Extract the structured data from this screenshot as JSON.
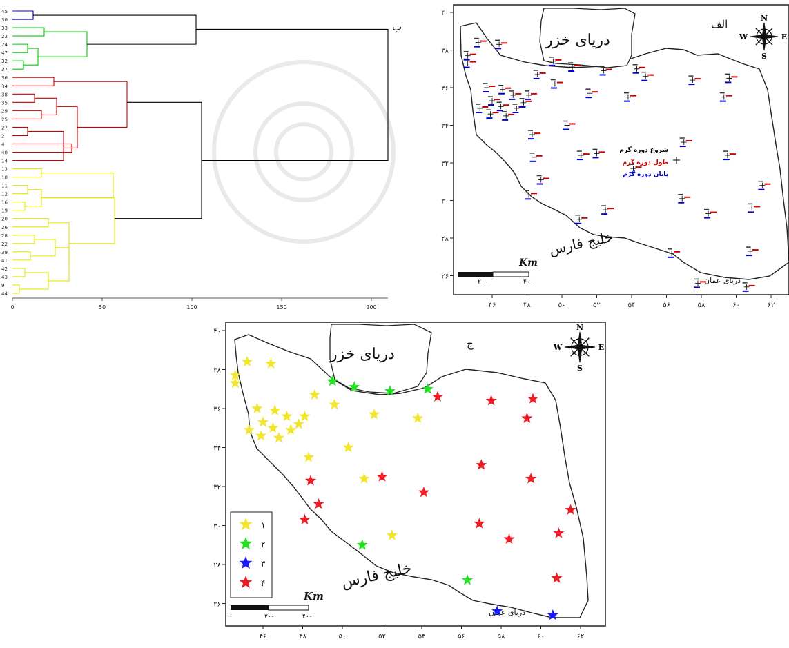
{
  "panels": {
    "dendrogram": {
      "letter": "ب",
      "leaf_labels": [
        "45",
        "30",
        "33",
        "23",
        "24",
        "47",
        "32",
        "37",
        "36",
        "34",
        "38",
        "35",
        "29",
        "25",
        "27",
        "2",
        "4",
        "40",
        "14",
        "13",
        "10",
        "11",
        "12",
        "16",
        "19",
        "20",
        "26",
        "28",
        "22",
        "39",
        "41",
        "42",
        "43",
        "9",
        "44"
      ],
      "x_ticks": [
        "0",
        "50",
        "100",
        "150",
        "200"
      ],
      "cluster_colors": {
        "c1": "#0000cc",
        "c2": "#00cc00",
        "c3": "#cc0000",
        "c4": "#e6e600",
        "root": "#000000"
      }
    },
    "map_top": {
      "letter": "الف",
      "sea_north": "دریای خزر",
      "sea_south": "خلیج فارس",
      "sea_oman": "دریای عمان",
      "scale_unit": "Km",
      "scale_labels": [
        "۲۰۰",
        "۴۰۰"
      ],
      "legend_lines": [
        {
          "text": "شروع دوره گرم",
          "color": "#000000"
        },
        {
          "text": "طول دوره گرم",
          "color": "#cc0000"
        },
        {
          "text": "پایان دوره گرم",
          "color": "#0000cc"
        }
      ],
      "x_ticks": [
        "۴۶",
        "۴۸",
        "۵۰",
        "۵۲",
        "۵۴",
        "۵۶",
        "۵۸",
        "۶۰",
        "۶۲"
      ],
      "y_ticks": [
        "۴۰",
        "۳۸",
        "۳۶",
        "۳۴",
        "۳۲",
        "۳۰",
        "۲۸",
        "۲۶"
      ],
      "compass": {
        "n": "N",
        "s": "S",
        "e": "E",
        "w": "W"
      }
    },
    "map_bottom": {
      "letter": "ج",
      "sea_north": "دریای خزر",
      "sea_south": "خلیج فارس",
      "sea_oman": "دریای عمان",
      "scale_unit": "Km",
      "scale_labels": [
        "۰",
        "۲۰۰",
        "۴۰۰"
      ],
      "x_ticks": [
        "۴۶",
        "۴۸",
        "۵۰",
        "۵۲",
        "۵۴",
        "۵۶",
        "۵۸",
        "۶۰",
        "۶۲"
      ],
      "y_ticks": [
        "۴۰",
        "۳۸",
        "۳۶",
        "۳۴",
        "۳۲",
        "۳۰",
        "۲۸",
        "۲۶"
      ],
      "compass": {
        "n": "N",
        "s": "S",
        "e": "E",
        "w": "W"
      },
      "legend": [
        {
          "label": "۱",
          "color": "#f2e62c"
        },
        {
          "label": "۲",
          "color": "#22e022"
        },
        {
          "label": "۳",
          "color": "#1a1aff"
        },
        {
          "label": "۴",
          "color": "#ee1c24"
        }
      ],
      "stations": [
        {
          "lon": 44.6,
          "lat": 37.3,
          "c": 1
        },
        {
          "lon": 45.2,
          "lat": 38.4,
          "c": 1
        },
        {
          "lon": 46.4,
          "lat": 38.3,
          "c": 1
        },
        {
          "lon": 44.6,
          "lat": 37.7,
          "c": 1
        },
        {
          "lon": 45.7,
          "lat": 36.0,
          "c": 1
        },
        {
          "lon": 46.6,
          "lat": 35.9,
          "c": 1
        },
        {
          "lon": 47.2,
          "lat": 35.6,
          "c": 1
        },
        {
          "lon": 46.0,
          "lat": 35.3,
          "c": 1
        },
        {
          "lon": 46.5,
          "lat": 35.0,
          "c": 1
        },
        {
          "lon": 45.3,
          "lat": 34.9,
          "c": 1
        },
        {
          "lon": 45.9,
          "lat": 34.6,
          "c": 1
        },
        {
          "lon": 46.8,
          "lat": 34.5,
          "c": 1
        },
        {
          "lon": 47.4,
          "lat": 34.9,
          "c": 1
        },
        {
          "lon": 47.8,
          "lat": 35.2,
          "c": 1
        },
        {
          "lon": 48.1,
          "lat": 35.6,
          "c": 1
        },
        {
          "lon": 48.3,
          "lat": 33.5,
          "c": 1
        },
        {
          "lon": 48.6,
          "lat": 36.7,
          "c": 1
        },
        {
          "lon": 49.6,
          "lat": 36.2,
          "c": 1
        },
        {
          "lon": 50.3,
          "lat": 34.0,
          "c": 1
        },
        {
          "lon": 51.6,
          "lat": 35.7,
          "c": 1
        },
        {
          "lon": 53.8,
          "lat": 35.5,
          "c": 1
        },
        {
          "lon": 51.1,
          "lat": 32.4,
          "c": 1
        },
        {
          "lon": 52.5,
          "lat": 29.5,
          "c": 1
        },
        {
          "lon": 49.5,
          "lat": 37.4,
          "c": 2
        },
        {
          "lon": 50.6,
          "lat": 37.1,
          "c": 2
        },
        {
          "lon": 52.4,
          "lat": 36.9,
          "c": 2
        },
        {
          "lon": 54.3,
          "lat": 37.0,
          "c": 2
        },
        {
          "lon": 51.0,
          "lat": 29.0,
          "c": 2
        },
        {
          "lon": 56.3,
          "lat": 27.2,
          "c": 2
        },
        {
          "lon": 57.8,
          "lat": 25.6,
          "c": 3
        },
        {
          "lon": 60.6,
          "lat": 25.4,
          "c": 3
        },
        {
          "lon": 54.8,
          "lat": 36.6,
          "c": 4
        },
        {
          "lon": 57.5,
          "lat": 36.4,
          "c": 4
        },
        {
          "lon": 59.6,
          "lat": 36.5,
          "c": 4
        },
        {
          "lon": 59.3,
          "lat": 35.5,
          "c": 4
        },
        {
          "lon": 57.0,
          "lat": 33.1,
          "c": 4
        },
        {
          "lon": 59.5,
          "lat": 32.4,
          "c": 4
        },
        {
          "lon": 48.4,
          "lat": 32.3,
          "c": 4
        },
        {
          "lon": 52.0,
          "lat": 32.5,
          "c": 4
        },
        {
          "lon": 54.1,
          "lat": 31.7,
          "c": 4
        },
        {
          "lon": 48.8,
          "lat": 31.1,
          "c": 4
        },
        {
          "lon": 48.1,
          "lat": 30.3,
          "c": 4
        },
        {
          "lon": 56.9,
          "lat": 30.1,
          "c": 4
        },
        {
          "lon": 61.5,
          "lat": 30.8,
          "c": 4
        },
        {
          "lon": 58.4,
          "lat": 29.3,
          "c": 4
        },
        {
          "lon": 60.9,
          "lat": 29.6,
          "c": 4
        },
        {
          "lon": 60.8,
          "lat": 27.3,
          "c": 4
        }
      ]
    }
  }
}
